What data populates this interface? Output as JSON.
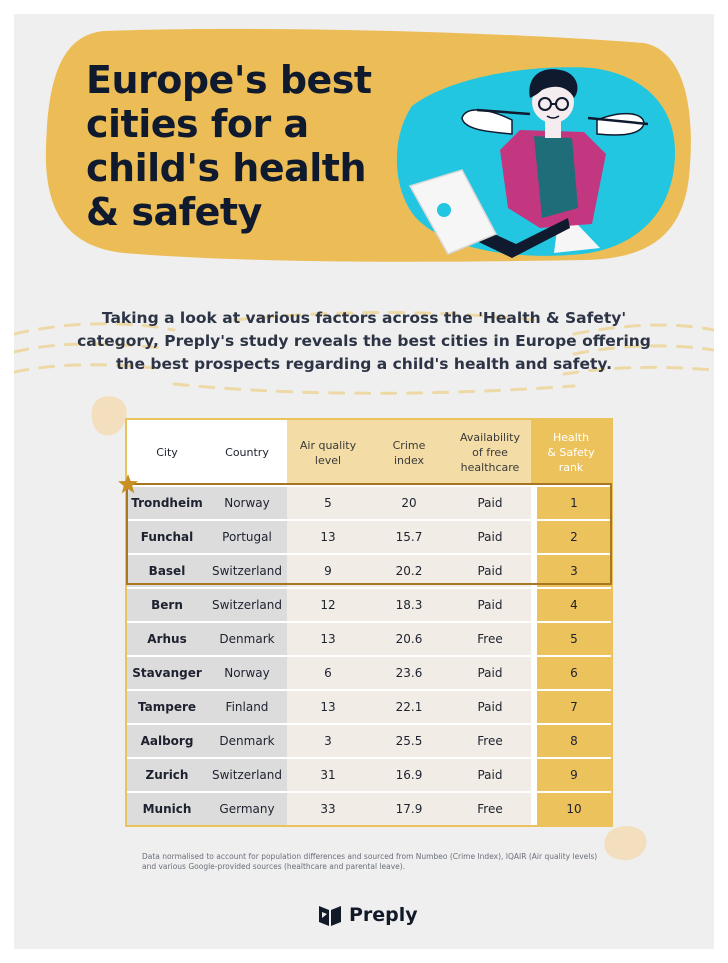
{
  "title_lines": [
    "Europe's best",
    "cities for a",
    "child's health",
    "& safety"
  ],
  "intro_lines": [
    "Taking a look at various factors across the 'Health & Safety'",
    "category, Preply's study reveals the best cities in Europe offering",
    "the best prospects regarding a child's health and safety."
  ],
  "table": {
    "headers": {
      "city": "City",
      "country": "Country",
      "air": [
        "Air quality",
        "level"
      ],
      "crime": [
        "Crime",
        "index"
      ],
      "avail": [
        "Availability",
        "of free",
        "healthcare"
      ],
      "rank": [
        "Health",
        "& Safety",
        "rank"
      ]
    },
    "rows": [
      {
        "city": "Trondheim",
        "country": "Norway",
        "air": "5",
        "crime": "20",
        "avail": "Paid",
        "rank": "1"
      },
      {
        "city": "Funchal",
        "country": "Portugal",
        "air": "13",
        "crime": "15.7",
        "avail": "Paid",
        "rank": "2"
      },
      {
        "city": "Basel",
        "country": "Switzerland",
        "air": "9",
        "crime": "20.2",
        "avail": "Paid",
        "rank": "3"
      },
      {
        "city": "Bern",
        "country": "Switzerland",
        "air": "12",
        "crime": "18.3",
        "avail": "Paid",
        "rank": "4"
      },
      {
        "city": "Arhus",
        "country": "Denmark",
        "air": "13",
        "crime": "20.6",
        "avail": "Free",
        "rank": "5"
      },
      {
        "city": "Stavanger",
        "country": "Norway",
        "air": "6",
        "crime": "23.6",
        "avail": "Paid",
        "rank": "6"
      },
      {
        "city": "Tampere",
        "country": "Finland",
        "air": "13",
        "crime": "22.1",
        "avail": "Paid",
        "rank": "7"
      },
      {
        "city": "Aalborg",
        "country": "Denmark",
        "air": "3",
        "crime": "25.5",
        "avail": "Free",
        "rank": "8"
      },
      {
        "city": "Zurich",
        "country": "Switzerland",
        "air": "31",
        "crime": "16.9",
        "avail": "Paid",
        "rank": "9"
      },
      {
        "city": "Munich",
        "country": "Germany",
        "air": "33",
        "crime": "17.9",
        "avail": "Free",
        "rank": "10"
      }
    ]
  },
  "footnote_lines": [
    "Data normalised to account for population differences and sourced from Numbeo (Crime Index), IQAIR (Air quality levels)",
    "and various Google-provided sources (healthcare and parental leave)."
  ],
  "brand": {
    "name": "Preply"
  },
  "icons": {
    "illustration": "person-relaxing-with-laptop-illustration",
    "star": "star-icon",
    "logo": "preply-logo-icon"
  },
  "colors": {
    "hero_bg": "#ecbd56",
    "accent_yellow": "#ecc25c",
    "header_light": "#f3dca6",
    "cyan": "#22c6e0",
    "magenta": "#c2377f",
    "navy": "#101a2e",
    "highlight_border": "#a87520",
    "page_bg": "#efefef"
  }
}
